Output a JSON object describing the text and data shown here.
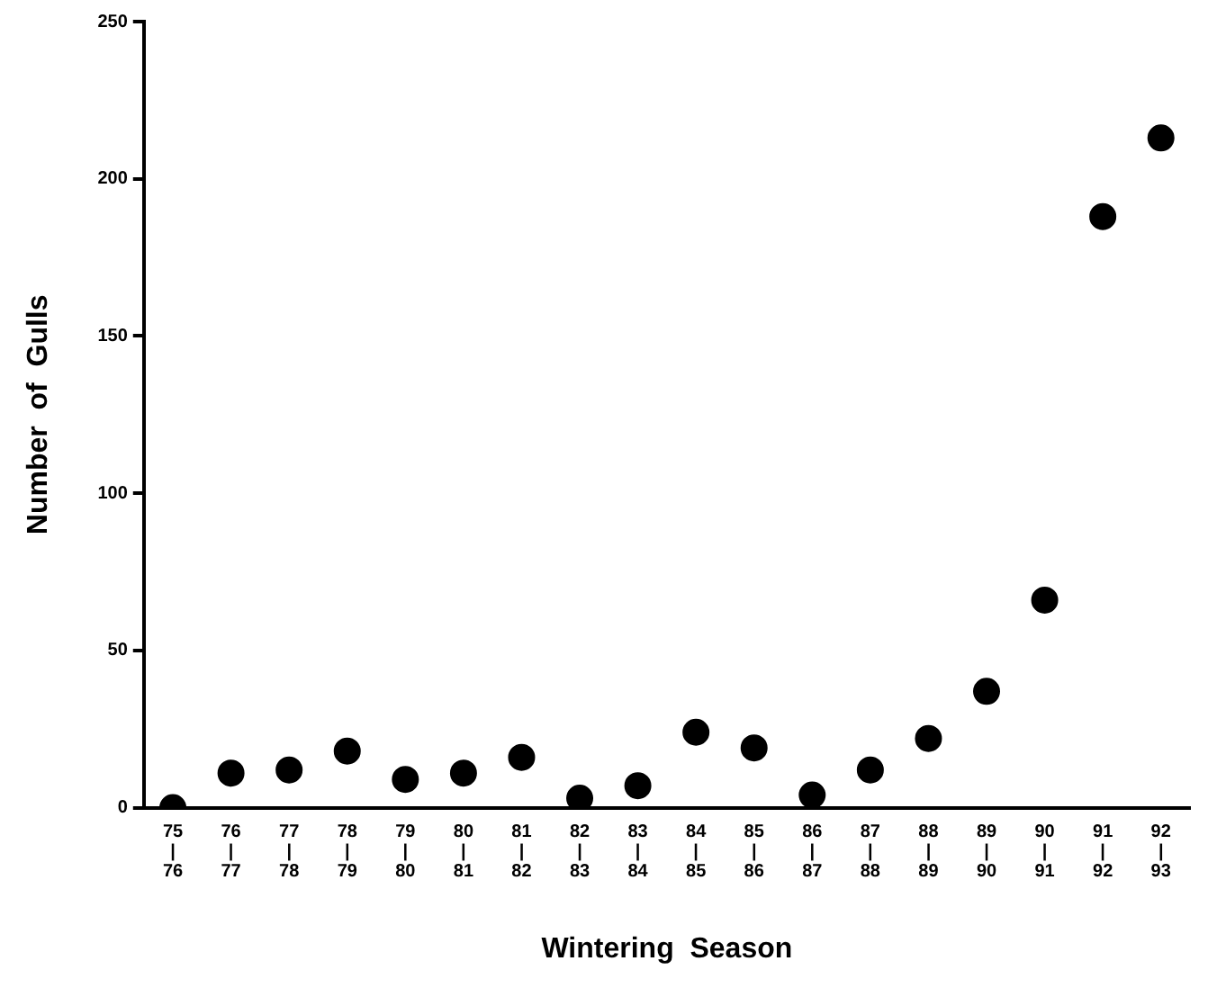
{
  "chart_data": {
    "type": "scatter",
    "xlabel": "Wintering  Season",
    "ylabel": "Number  of  Gulls",
    "categories": [
      "75\n|\n76",
      "76\n|\n77",
      "77\n|\n78",
      "78\n|\n79",
      "79\n|\n80",
      "80\n|\n81",
      "81\n|\n82",
      "82\n|\n83",
      "83\n|\n84",
      "84\n|\n85",
      "85\n|\n86",
      "86\n|\n87",
      "87\n|\n88",
      "88\n|\n89",
      "89\n|\n90",
      "90\n|\n91",
      "91\n|\n92",
      "92\n|\n93"
    ],
    "series": [
      {
        "color": "#000000",
        "values": [
          0,
          11,
          12,
          18,
          9,
          11,
          16,
          3,
          7,
          24,
          19,
          4,
          12,
          22,
          37,
          66,
          188,
          213
        ]
      }
    ],
    "ylim": [
      0,
      250
    ],
    "yticks": [
      0,
      50,
      100,
      150,
      200,
      250
    ],
    "grid": false,
    "legend": false,
    "marker": "circle"
  }
}
